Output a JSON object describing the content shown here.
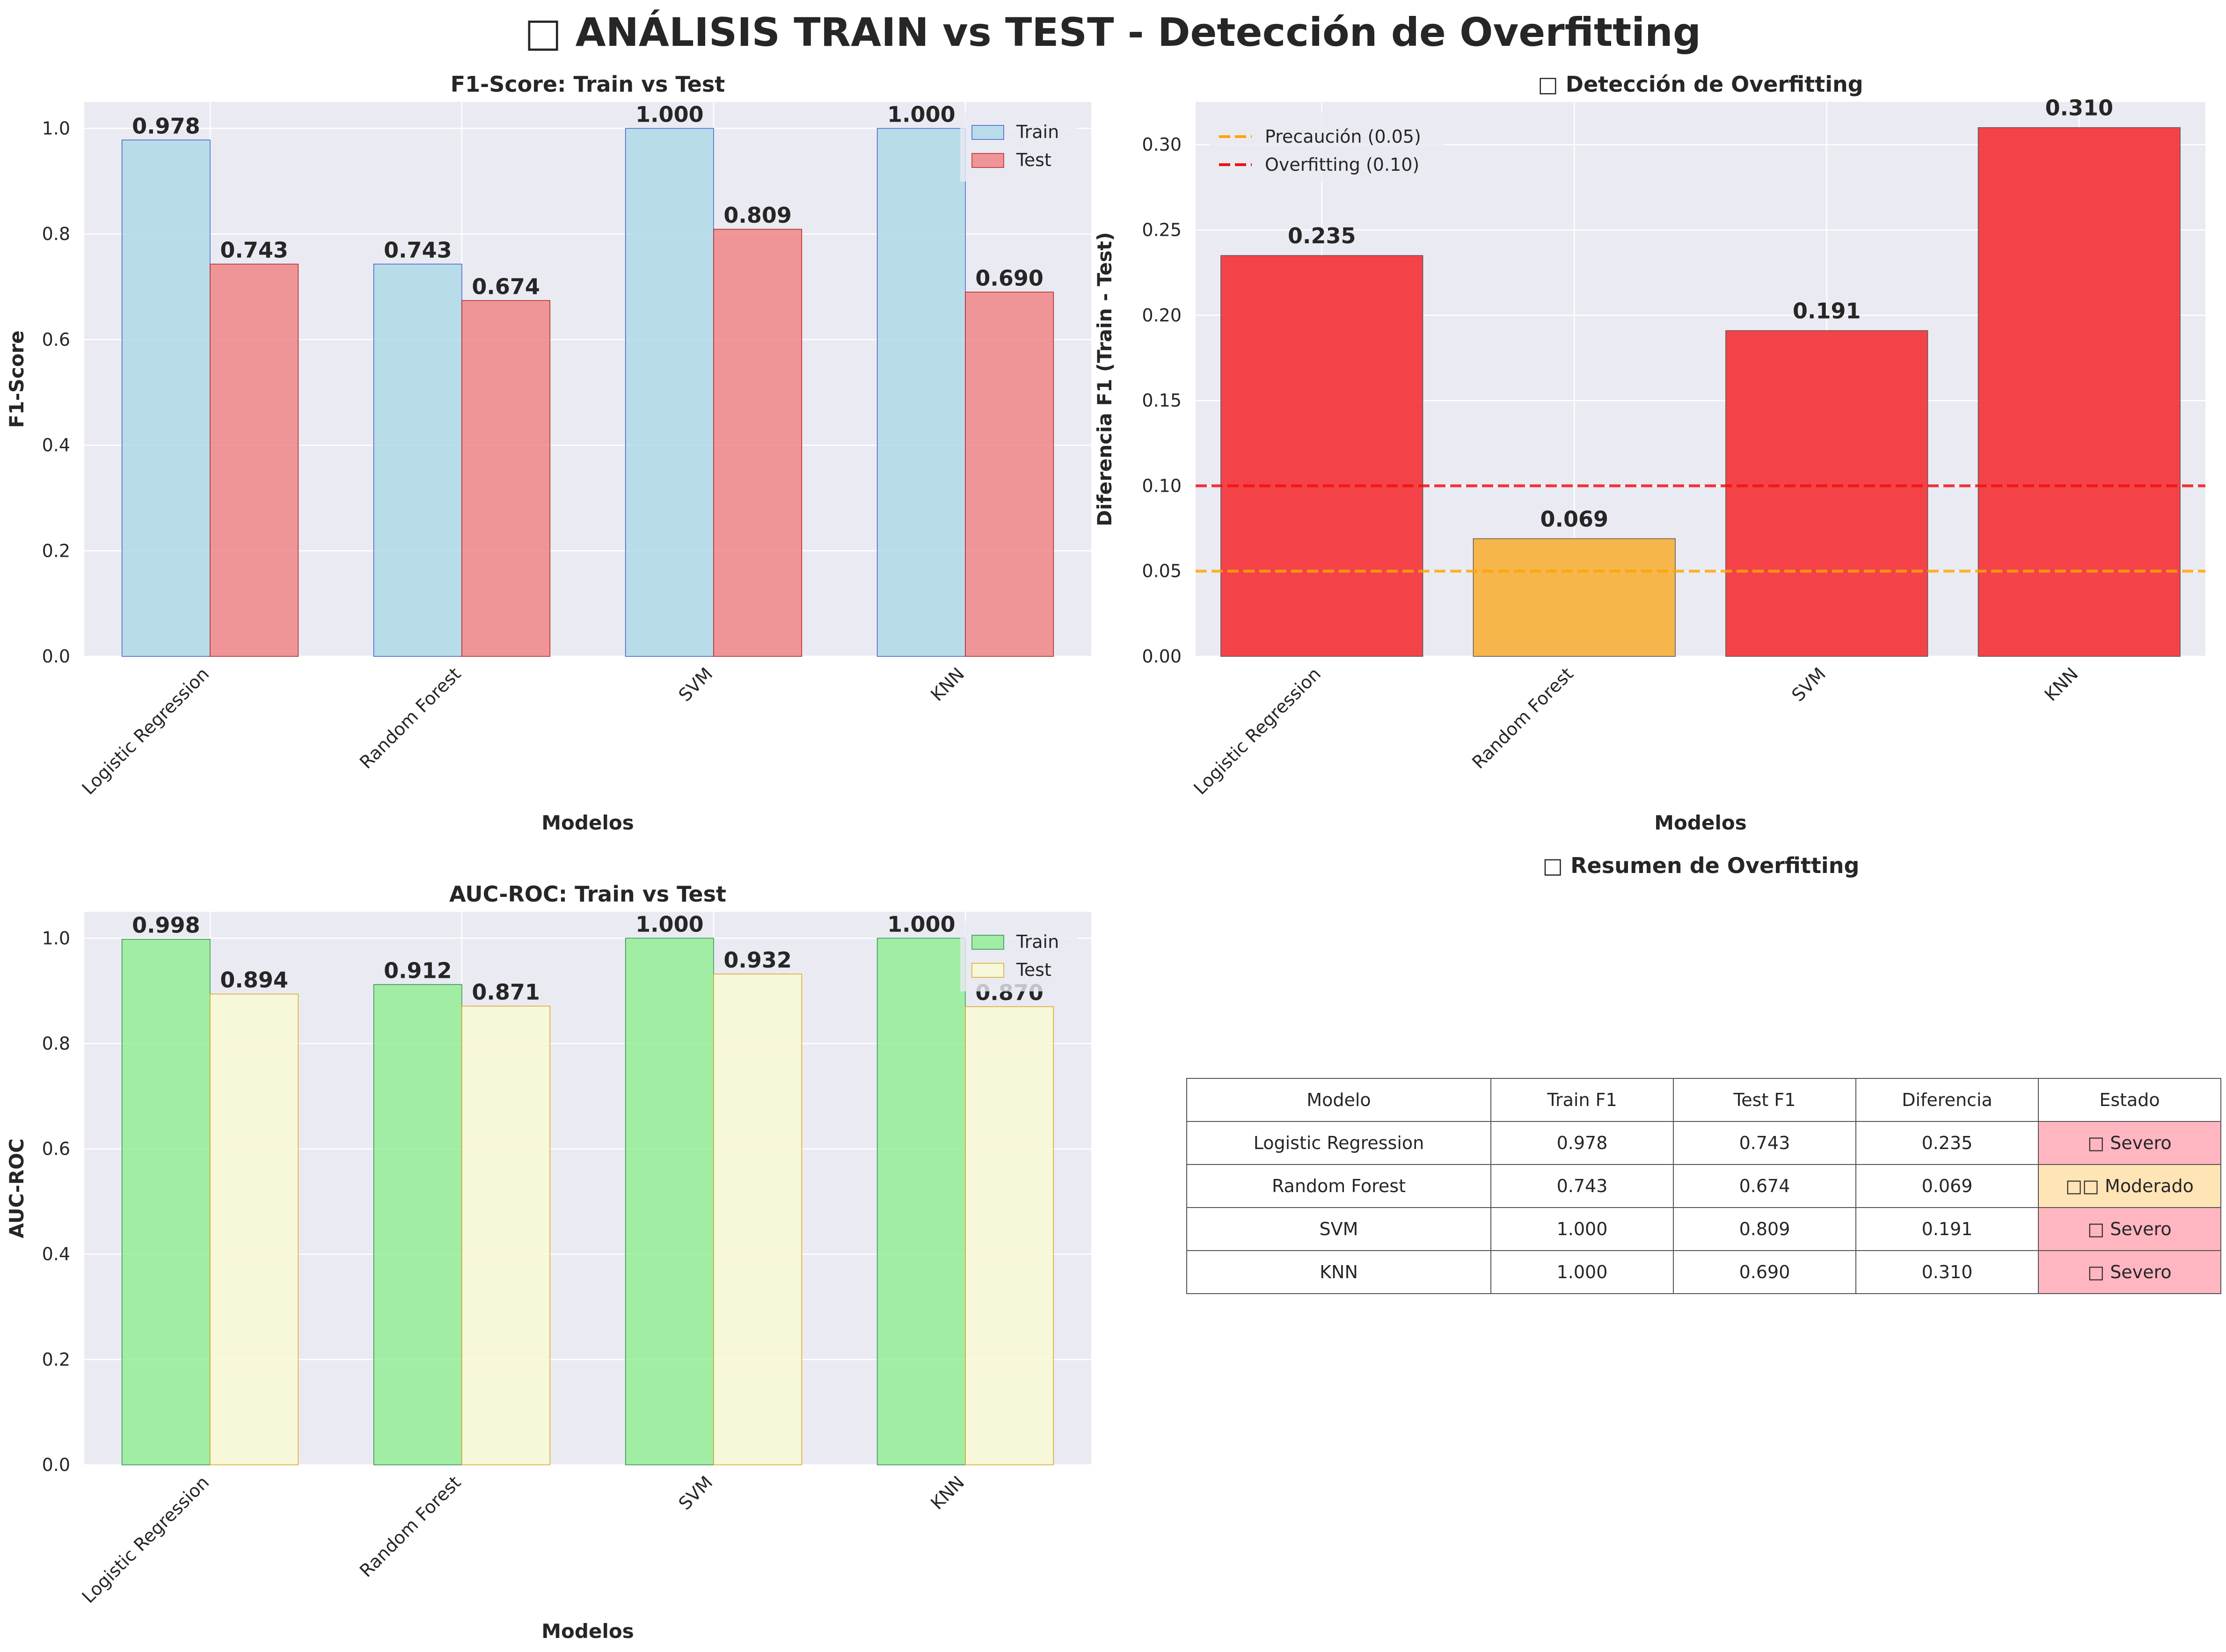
{
  "figure": {
    "title": "□ ANÁLISIS TRAIN vs TEST - Detección de Overfitting"
  },
  "chart_data": [
    {
      "type": "bar",
      "title": "F1-Score: Train vs Test",
      "xlabel": "Modelos",
      "ylabel": "F1-Score",
      "categories": [
        "Logistic Regression",
        "Random Forest",
        "SVM",
        "KNN"
      ],
      "series": [
        {
          "name": "Train",
          "values": [
            0.978,
            0.743,
            1.0,
            1.0
          ],
          "color": "#add8e6",
          "edge": "#3a5fcd"
        },
        {
          "name": "Test",
          "values": [
            0.743,
            0.674,
            0.809,
            0.69
          ],
          "color": "#f08080",
          "edge": "#b22222"
        }
      ],
      "ylim": [
        0,
        1.05
      ],
      "yticks": [
        "0.0",
        "0.2",
        "0.4",
        "0.6",
        "0.8",
        "1.0"
      ],
      "value_labels": [
        [
          "0.978",
          "0.743",
          "1.000",
          "1.000"
        ],
        [
          "0.743",
          "0.674",
          "0.809",
          "0.690"
        ]
      ],
      "legend": "top-right",
      "grid": true
    },
    {
      "type": "bar",
      "title": "□ Detección de Overfitting",
      "xlabel": "Modelos",
      "ylabel": "Diferencia F1 (Train - Test)",
      "categories": [
        "Logistic Regression",
        "Random Forest",
        "SVM",
        "KNN"
      ],
      "values": [
        0.235,
        0.069,
        0.191,
        0.31
      ],
      "value_labels": [
        "0.235",
        "0.069",
        "0.191",
        "0.310"
      ],
      "colors": [
        "#f43a3e",
        "#f7b341",
        "#f43a3e",
        "#f43a3e"
      ],
      "ylim": [
        0,
        0.325
      ],
      "yticks": [
        "0.00",
        "0.05",
        "0.10",
        "0.15",
        "0.20",
        "0.25",
        "0.30"
      ],
      "thresholds": [
        {
          "label": "Precaución (0.05)",
          "value": 0.05,
          "color": "#ffa500"
        },
        {
          "label": "Overfitting (0.10)",
          "value": 0.1,
          "color": "#ee1111"
        }
      ],
      "legend": "top-left",
      "grid": true
    },
    {
      "type": "bar",
      "title": "AUC-ROC: Train vs Test",
      "xlabel": "Modelos",
      "ylabel": "AUC-ROC",
      "categories": [
        "Logistic Regression",
        "Random Forest",
        "SVM",
        "KNN"
      ],
      "series": [
        {
          "name": "Train",
          "values": [
            0.998,
            0.912,
            1.0,
            1.0
          ],
          "color": "#90ee90",
          "edge": "#2e8b57"
        },
        {
          "name": "Test",
          "values": [
            0.894,
            0.871,
            0.932,
            0.87
          ],
          "color": "#fafad2",
          "edge": "#daa520"
        }
      ],
      "ylim": [
        0,
        1.05
      ],
      "yticks": [
        "0.0",
        "0.2",
        "0.4",
        "0.6",
        "0.8",
        "1.0"
      ],
      "value_labels": [
        [
          "0.998",
          "0.912",
          "1.000",
          "1.000"
        ],
        [
          "0.894",
          "0.871",
          "0.932",
          "0.870"
        ]
      ],
      "legend": "top-right",
      "grid": true
    },
    {
      "type": "table",
      "title": "□ Resumen de Overfitting",
      "columns": [
        "Modelo",
        "Train F1",
        "Test F1",
        "Diferencia",
        "Estado"
      ],
      "rows": [
        [
          "Logistic Regression",
          "0.978",
          "0.743",
          "0.235",
          "□ Severo"
        ],
        [
          "Random Forest",
          "0.743",
          "0.674",
          "0.069",
          "□□ Moderado"
        ],
        [
          "SVM",
          "1.000",
          "0.809",
          "0.191",
          "□ Severo"
        ],
        [
          "KNN",
          "1.000",
          "0.690",
          "0.310",
          "□ Severo"
        ]
      ],
      "status_colors": [
        "#ffb6c1",
        "#ffe4b5",
        "#ffb6c1",
        "#ffb6c1"
      ]
    }
  ]
}
